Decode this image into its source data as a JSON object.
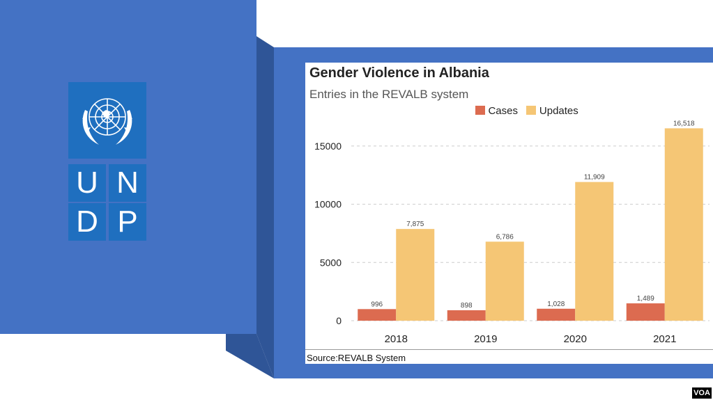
{
  "logo": {
    "letters": [
      "U",
      "N",
      "D",
      "P"
    ],
    "color": "#1f6fbf"
  },
  "chart_data": {
    "type": "bar",
    "title": "Gender Violence in Albania",
    "subtitle": "Entries in the REVALB system",
    "categories": [
      "2018",
      "2019",
      "2020",
      "2021"
    ],
    "series": [
      {
        "name": "Cases",
        "values": [
          996,
          898,
          1028,
          1489
        ],
        "labels": [
          "996",
          "898",
          "1,028",
          "1,489"
        ],
        "color": "#dc6b50"
      },
      {
        "name": "Updates",
        "values": [
          7875,
          6786,
          11909,
          16518
        ],
        "labels": [
          "7,875",
          "6,786",
          "11,909",
          "16,518"
        ],
        "color": "#f5c675"
      }
    ],
    "yticks": [
      0,
      5000,
      10000,
      15000
    ],
    "ylim": [
      0,
      17500
    ],
    "grid": true,
    "legend_position": "top",
    "source": "Source:REVALB System"
  },
  "badge": {
    "label": "VOA"
  }
}
